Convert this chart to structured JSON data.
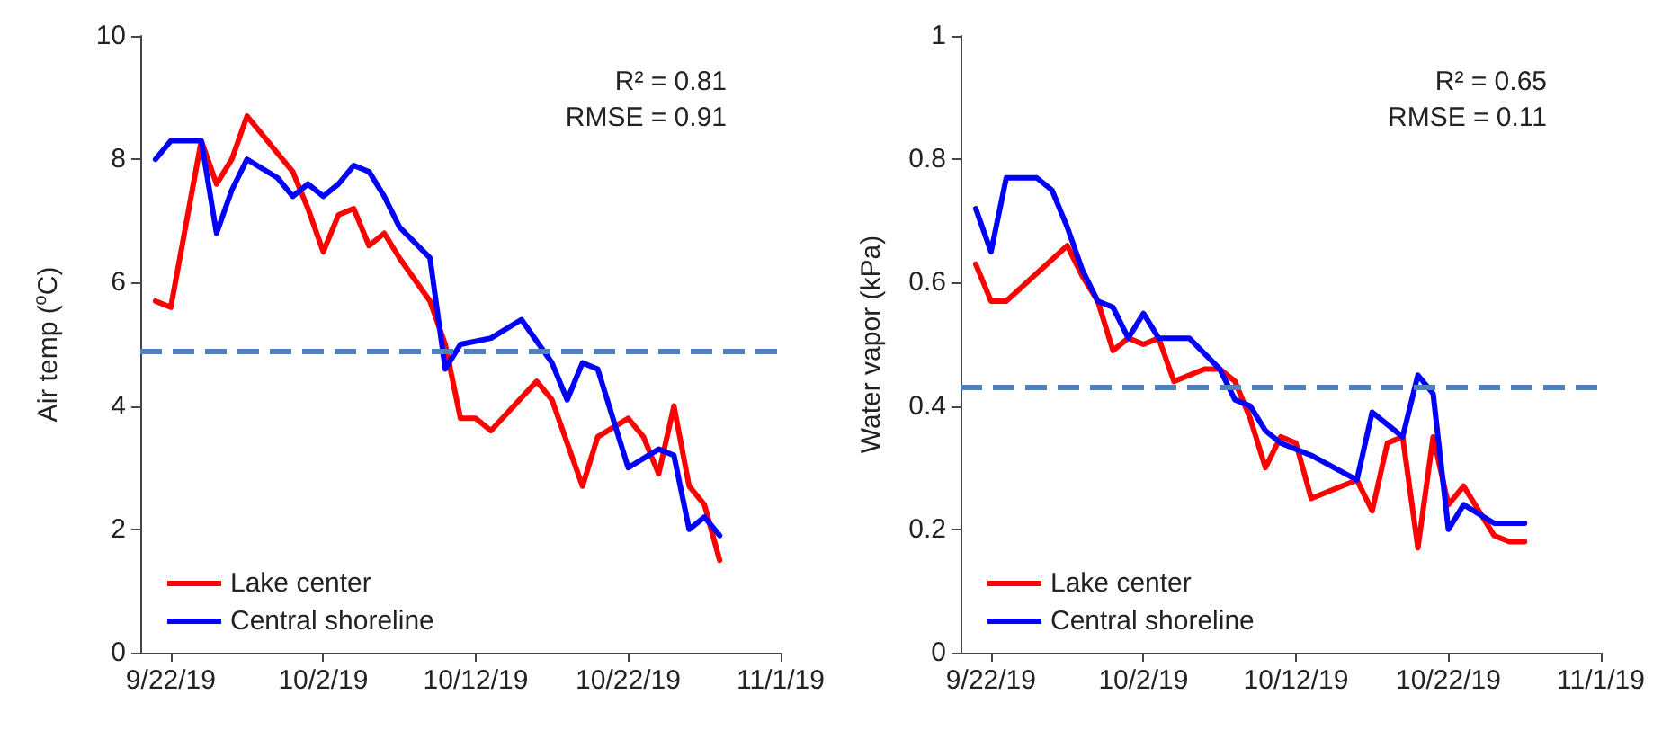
{
  "chart_data": [
    {
      "type": "line",
      "ylabel": "Air temp ($^{o}$C)",
      "xlim": [
        "2019-09-20",
        "2019-11-01"
      ],
      "xticks": [
        {
          "value": "2019-09-22",
          "label": "9/22/19"
        },
        {
          "value": "2019-10-02",
          "label": "10/2/19"
        },
        {
          "value": "2019-10-12",
          "label": "10/12/19"
        },
        {
          "value": "2019-10-22",
          "label": "10/22/19"
        },
        {
          "value": "2019-11-01",
          "label": "11/1/19"
        }
      ],
      "ylim": [
        0,
        10
      ],
      "yticks": [
        0,
        2,
        4,
        6,
        8,
        10
      ],
      "grid": false,
      "legend": "bottom left",
      "marker": "none",
      "line_style": "solid",
      "annotations": [
        "R² = 0.81",
        "RMSE = 0.91"
      ],
      "ref_lines": [
        {
          "axis": "y",
          "value": 4.9,
          "color": "#4f81bd",
          "line_style": "dashed"
        }
      ],
      "series": [
        {
          "name": "Lake center",
          "color": "#ff0000",
          "x": [
            "2019-09-21",
            "2019-09-22",
            "2019-09-24",
            "2019-09-25",
            "2019-09-26",
            "2019-09-27",
            "2019-09-29",
            "2019-09-30",
            "2019-10-01",
            "2019-10-02",
            "2019-10-03",
            "2019-10-04",
            "2019-10-05",
            "2019-10-06",
            "2019-10-07",
            "2019-10-09",
            "2019-10-10",
            "2019-10-11",
            "2019-10-12",
            "2019-10-13",
            "2019-10-16",
            "2019-10-17",
            "2019-10-19",
            "2019-10-20",
            "2019-10-22",
            "2019-10-23",
            "2019-10-24",
            "2019-10-25",
            "2019-10-26",
            "2019-10-27",
            "2019-10-28"
          ],
          "values": [
            5.7,
            5.6,
            8.3,
            7.6,
            8.0,
            8.7,
            8.1,
            7.8,
            7.2,
            6.5,
            7.1,
            7.2,
            6.6,
            6.8,
            6.4,
            5.7,
            5.0,
            3.8,
            3.8,
            3.6,
            4.4,
            4.1,
            2.7,
            3.5,
            3.8,
            3.5,
            2.9,
            4.0,
            2.7,
            2.4,
            1.5
          ]
        },
        {
          "name": "Central shoreline",
          "color": "#0000ff",
          "x": [
            "2019-09-21",
            "2019-09-22",
            "2019-09-24",
            "2019-09-25",
            "2019-09-26",
            "2019-09-27",
            "2019-09-29",
            "2019-09-30",
            "2019-10-01",
            "2019-10-02",
            "2019-10-03",
            "2019-10-04",
            "2019-10-05",
            "2019-10-06",
            "2019-10-07",
            "2019-10-09",
            "2019-10-10",
            "2019-10-11",
            "2019-10-13",
            "2019-10-15",
            "2019-10-17",
            "2019-10-18",
            "2019-10-19",
            "2019-10-20",
            "2019-10-22",
            "2019-10-24",
            "2019-10-25",
            "2019-10-26",
            "2019-10-27",
            "2019-10-28"
          ],
          "values": [
            8.0,
            8.3,
            8.3,
            6.8,
            7.5,
            8.0,
            7.7,
            7.4,
            7.6,
            7.4,
            7.6,
            7.9,
            7.8,
            7.4,
            6.9,
            6.4,
            4.6,
            5.0,
            5.1,
            5.4,
            4.7,
            4.1,
            4.7,
            4.6,
            3.0,
            3.3,
            3.2,
            2.0,
            2.2,
            1.9
          ]
        }
      ]
    },
    {
      "type": "line",
      "ylabel": "Water vapor (kPa)",
      "xlim": [
        "2019-09-20",
        "2019-11-01"
      ],
      "xticks": [
        {
          "value": "2019-09-22",
          "label": "9/22/19"
        },
        {
          "value": "2019-10-02",
          "label": "10/2/19"
        },
        {
          "value": "2019-10-12",
          "label": "10/12/19"
        },
        {
          "value": "2019-10-22",
          "label": "10/22/19"
        },
        {
          "value": "2019-11-01",
          "label": "11/1/19"
        }
      ],
      "ylim": [
        0,
        1
      ],
      "yticks": [
        0,
        0.2,
        0.4,
        0.6,
        0.8,
        1
      ],
      "grid": false,
      "legend": "bottom left",
      "marker": "none",
      "line_style": "solid",
      "annotations": [
        "R² = 0.65",
        "RMSE = 0.11"
      ],
      "ref_lines": [
        {
          "axis": "y",
          "value": 0.43,
          "color": "#4f81bd",
          "line_style": "dashed"
        }
      ],
      "series": [
        {
          "name": "Lake center",
          "color": "#ff0000",
          "x": [
            "2019-09-21",
            "2019-09-22",
            "2019-09-23",
            "2019-09-27",
            "2019-09-28",
            "2019-09-29",
            "2019-09-30",
            "2019-10-01",
            "2019-10-02",
            "2019-10-03",
            "2019-10-04",
            "2019-10-06",
            "2019-10-07",
            "2019-10-08",
            "2019-10-09",
            "2019-10-10",
            "2019-10-11",
            "2019-10-12",
            "2019-10-13",
            "2019-10-15",
            "2019-10-16",
            "2019-10-17",
            "2019-10-18",
            "2019-10-19",
            "2019-10-20",
            "2019-10-21",
            "2019-10-22",
            "2019-10-23",
            "2019-10-25",
            "2019-10-26",
            "2019-10-27"
          ],
          "values": [
            0.63,
            0.57,
            0.57,
            0.66,
            0.61,
            0.57,
            0.49,
            0.51,
            0.5,
            0.51,
            0.44,
            0.46,
            0.46,
            0.44,
            0.38,
            0.3,
            0.35,
            0.34,
            0.25,
            0.27,
            0.28,
            0.23,
            0.34,
            0.35,
            0.17,
            0.35,
            0.24,
            0.27,
            0.19,
            0.18,
            0.18
          ]
        },
        {
          "name": "Central shoreline",
          "color": "#0000ff",
          "x": [
            "2019-09-21",
            "2019-09-22",
            "2019-09-23",
            "2019-09-25",
            "2019-09-26",
            "2019-09-27",
            "2019-09-28",
            "2019-09-29",
            "2019-09-30",
            "2019-10-01",
            "2019-10-02",
            "2019-10-03",
            "2019-10-05",
            "2019-10-07",
            "2019-10-08",
            "2019-10-09",
            "2019-10-10",
            "2019-10-11",
            "2019-10-13",
            "2019-10-16",
            "2019-10-17",
            "2019-10-19",
            "2019-10-20",
            "2019-10-21",
            "2019-10-22",
            "2019-10-23",
            "2019-10-25",
            "2019-10-26",
            "2019-10-27"
          ],
          "values": [
            0.72,
            0.65,
            0.77,
            0.77,
            0.75,
            0.69,
            0.62,
            0.57,
            0.56,
            0.51,
            0.55,
            0.51,
            0.51,
            0.46,
            0.41,
            0.4,
            0.36,
            0.34,
            0.32,
            0.28,
            0.39,
            0.35,
            0.45,
            0.42,
            0.2,
            0.24,
            0.21,
            0.21,
            0.21
          ]
        }
      ]
    }
  ]
}
